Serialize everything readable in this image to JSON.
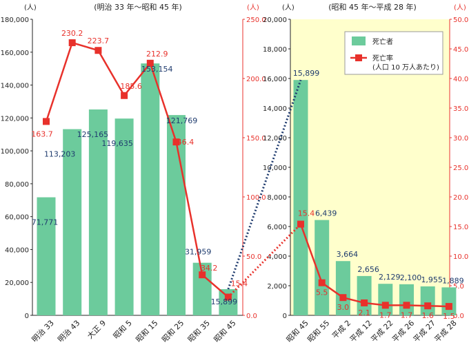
{
  "chart_data": [
    {
      "type": "bar",
      "title": "(明治 33 年〜昭和 45 年)",
      "left_unit": "(人)",
      "right_unit": "(人)",
      "categories": [
        "明治 33",
        "明治 43",
        "大正 9",
        "昭和 5",
        "昭和 15",
        "昭和 25",
        "昭和 35",
        "昭和 45"
      ],
      "series": [
        {
          "name": "死亡者",
          "kind": "bar",
          "axis": "left",
          "color": "#6ccb9c",
          "values": [
            71771,
            113203,
            125165,
            119635,
            153154,
            121769,
            31959,
            15899
          ],
          "labels": [
            "71,771",
            "113,203",
            "125,165",
            "119,635",
            "153,154",
            "121,769",
            "31,959",
            "15,899"
          ]
        },
        {
          "name": "死亡率",
          "kind": "line",
          "axis": "right",
          "color": "#e8312b",
          "values": [
            163.7,
            230.2,
            223.7,
            185.6,
            212.9,
            146.4,
            34.2,
            15.4
          ],
          "labels": [
            "163.7",
            "230.2",
            "223.7",
            "185.6",
            "212.9",
            "146.4",
            "34.2",
            "15.4"
          ]
        }
      ],
      "left_axis": {
        "min": 0,
        "max": 180000,
        "ticks": [
          "0",
          "20,000",
          "40,000",
          "60,000",
          "80,000",
          "100,000",
          "120,000",
          "140,000",
          "160,000",
          "180,000"
        ]
      },
      "right_axis": {
        "min": 0,
        "max": 250,
        "ticks": [
          "0.0",
          "50.0",
          "100.0",
          "150.0",
          "200.0",
          "250.0"
        ]
      }
    },
    {
      "type": "bar",
      "title": "(昭和 45 年〜平成 28 年)",
      "left_unit": "(人)",
      "right_unit": "(人)",
      "categories": [
        "昭和 45",
        "昭和 55",
        "平成 2",
        "平成 12",
        "平成 22",
        "平成 26",
        "平成 27",
        "平成 28"
      ],
      "series": [
        {
          "name": "死亡者",
          "kind": "bar",
          "axis": "left",
          "color": "#6ccb9c",
          "values": [
            15899,
            6439,
            3664,
            2656,
            2129,
            2100,
            1955,
            1889
          ],
          "labels": [
            "15,899",
            "6,439",
            "3,664",
            "2,656",
            "2,129",
            "2,100",
            "1,955",
            "1,889"
          ]
        },
        {
          "name": "死亡率",
          "kind": "line",
          "axis": "right",
          "color": "#e8312b",
          "values": [
            15.4,
            5.5,
            3.0,
            2.1,
            1.7,
            1.7,
            1.6,
            1.5
          ],
          "labels": [
            "15.4",
            "5.5",
            "3.0",
            "2.1",
            "1.7",
            "1.7",
            "1.6",
            "1.5"
          ]
        }
      ],
      "left_axis": {
        "min": 0,
        "max": 20000,
        "ticks": [
          "0",
          "2,000",
          "4,000",
          "6,000",
          "8,000",
          "10,000",
          "12,000",
          "14,000",
          "16,000",
          "18,000",
          "20,000"
        ]
      },
      "right_axis": {
        "min": 0,
        "max": 50,
        "ticks": [
          "0.0",
          "5.0",
          "10.0",
          "15.0",
          "20.0",
          "25.0",
          "30.0",
          "35.0",
          "40.0",
          "45.0",
          "50.0"
        ]
      },
      "background_color": "#ffffcc"
    }
  ],
  "legend": {
    "items": [
      {
        "key": "deaths",
        "label": "死亡者",
        "color": "#6ccb9c"
      },
      {
        "key": "rate",
        "label": "死亡率",
        "sublabel": "(人口 10 万人あたり)",
        "color": "#e8312b"
      }
    ]
  },
  "connectors": [
    {
      "series": "死亡者",
      "color": "#1f3b6e",
      "style": "dotted"
    },
    {
      "series": "死亡率",
      "color": "#e8312b",
      "style": "dotted"
    }
  ]
}
